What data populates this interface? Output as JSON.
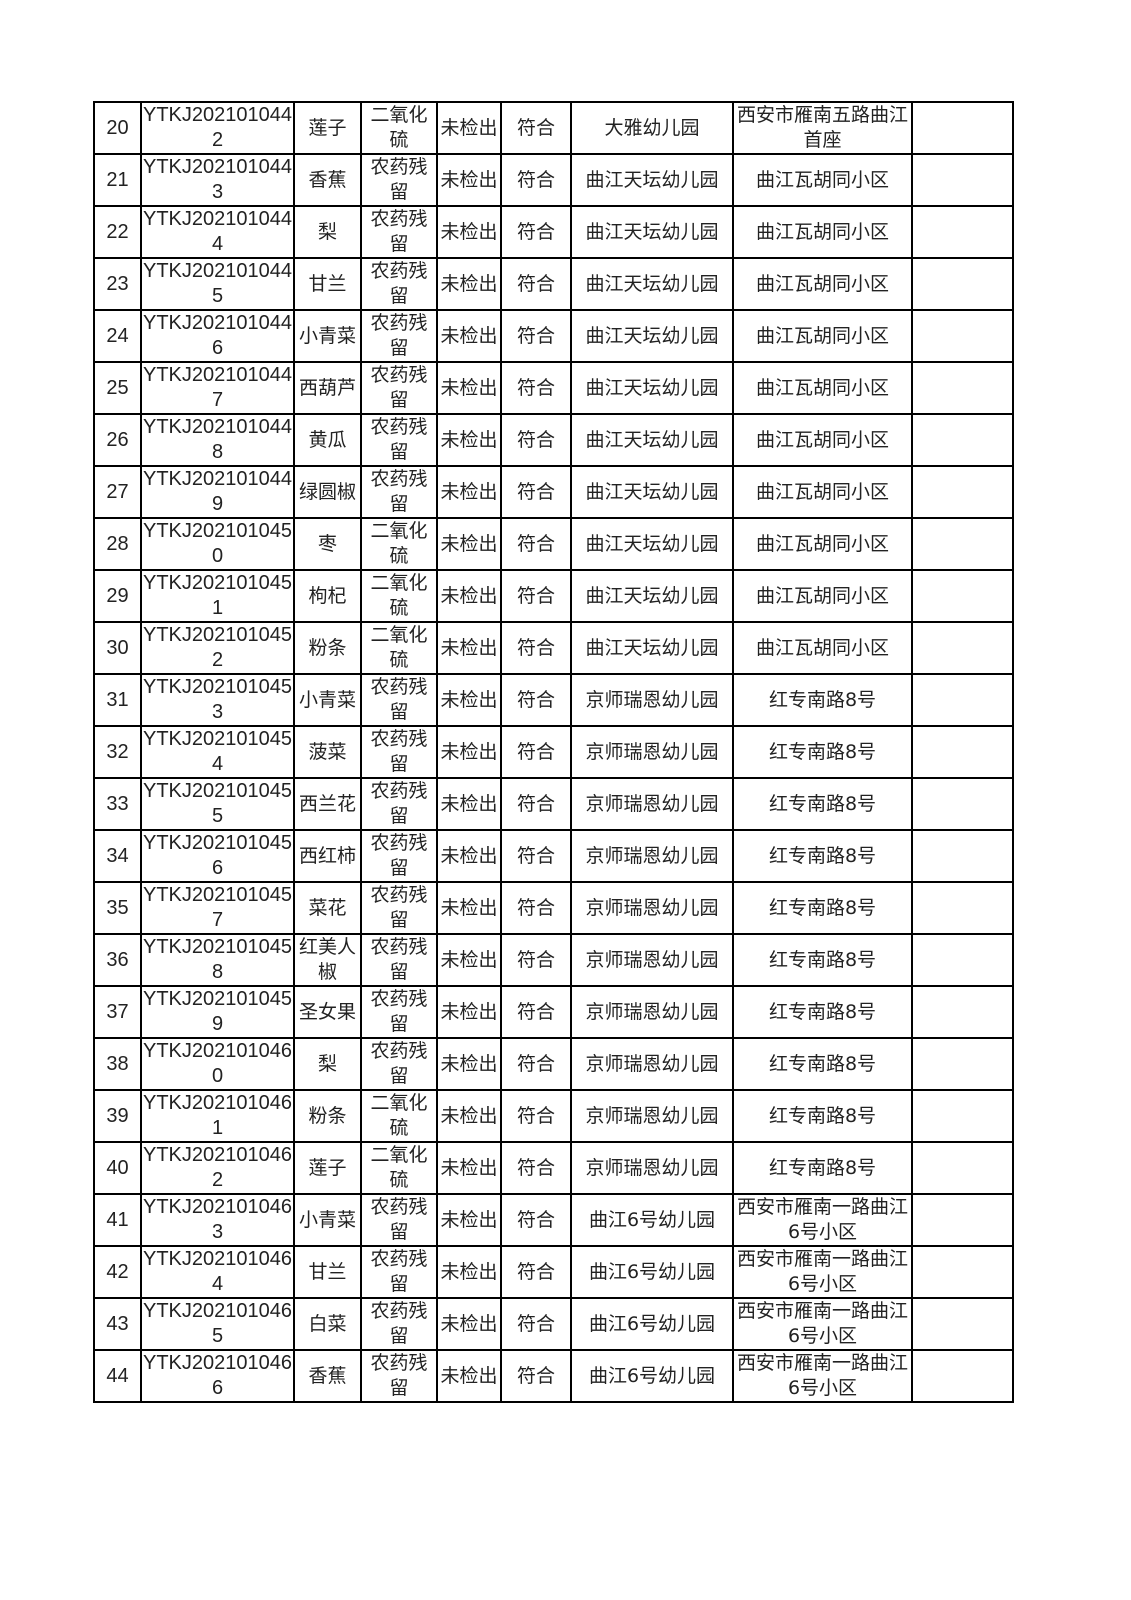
{
  "rows": [
    [
      "20",
      "YTKJ2021010442",
      "莲子",
      "二氧化硫",
      "未检出",
      "符合",
      "大雅幼儿园",
      "西安市雁南五路曲江首座",
      ""
    ],
    [
      "21",
      "YTKJ2021010443",
      "香蕉",
      "农药残留",
      "未检出",
      "符合",
      "曲江天坛幼儿园",
      "曲江瓦胡同小区",
      ""
    ],
    [
      "22",
      "YTKJ2021010444",
      "梨",
      "农药残留",
      "未检出",
      "符合",
      "曲江天坛幼儿园",
      "曲江瓦胡同小区",
      ""
    ],
    [
      "23",
      "YTKJ2021010445",
      "甘兰",
      "农药残留",
      "未检出",
      "符合",
      "曲江天坛幼儿园",
      "曲江瓦胡同小区",
      ""
    ],
    [
      "24",
      "YTKJ2021010446",
      "小青菜",
      "农药残留",
      "未检出",
      "符合",
      "曲江天坛幼儿园",
      "曲江瓦胡同小区",
      ""
    ],
    [
      "25",
      "YTKJ2021010447",
      "西葫芦",
      "农药残留",
      "未检出",
      "符合",
      "曲江天坛幼儿园",
      "曲江瓦胡同小区",
      ""
    ],
    [
      "26",
      "YTKJ2021010448",
      "黄瓜",
      "农药残留",
      "未检出",
      "符合",
      "曲江天坛幼儿园",
      "曲江瓦胡同小区",
      ""
    ],
    [
      "27",
      "YTKJ2021010449",
      "绿圆椒",
      "农药残留",
      "未检出",
      "符合",
      "曲江天坛幼儿园",
      "曲江瓦胡同小区",
      ""
    ],
    [
      "28",
      "YTKJ2021010450",
      "枣",
      "二氧化硫",
      "未检出",
      "符合",
      "曲江天坛幼儿园",
      "曲江瓦胡同小区",
      ""
    ],
    [
      "29",
      "YTKJ2021010451",
      "枸杞",
      "二氧化硫",
      "未检出",
      "符合",
      "曲江天坛幼儿园",
      "曲江瓦胡同小区",
      ""
    ],
    [
      "30",
      "YTKJ2021010452",
      "粉条",
      "二氧化硫",
      "未检出",
      "符合",
      "曲江天坛幼儿园",
      "曲江瓦胡同小区",
      ""
    ],
    [
      "31",
      "YTKJ2021010453",
      "小青菜",
      "农药残留",
      "未检出",
      "符合",
      "京师瑞恩幼儿园",
      "红专南路8号",
      ""
    ],
    [
      "32",
      "YTKJ2021010454",
      "菠菜",
      "农药残留",
      "未检出",
      "符合",
      "京师瑞恩幼儿园",
      "红专南路8号",
      ""
    ],
    [
      "33",
      "YTKJ2021010455",
      "西兰花",
      "农药残留",
      "未检出",
      "符合",
      "京师瑞恩幼儿园",
      "红专南路8号",
      ""
    ],
    [
      "34",
      "YTKJ2021010456",
      "西红柿",
      "农药残留",
      "未检出",
      "符合",
      "京师瑞恩幼儿园",
      "红专南路8号",
      ""
    ],
    [
      "35",
      "YTKJ2021010457",
      "菜花",
      "农药残留",
      "未检出",
      "符合",
      "京师瑞恩幼儿园",
      "红专南路8号",
      ""
    ],
    [
      "36",
      "YTKJ2021010458",
      "红美人椒",
      "农药残留",
      "未检出",
      "符合",
      "京师瑞恩幼儿园",
      "红专南路8号",
      ""
    ],
    [
      "37",
      "YTKJ2021010459",
      "圣女果",
      "农药残留",
      "未检出",
      "符合",
      "京师瑞恩幼儿园",
      "红专南路8号",
      ""
    ],
    [
      "38",
      "YTKJ2021010460",
      "梨",
      "农药残留",
      "未检出",
      "符合",
      "京师瑞恩幼儿园",
      "红专南路8号",
      ""
    ],
    [
      "39",
      "YTKJ2021010461",
      "粉条",
      "二氧化硫",
      "未检出",
      "符合",
      "京师瑞恩幼儿园",
      "红专南路8号",
      ""
    ],
    [
      "40",
      "YTKJ2021010462",
      "莲子",
      "二氧化硫",
      "未检出",
      "符合",
      "京师瑞恩幼儿园",
      "红专南路8号",
      ""
    ],
    [
      "41",
      "YTKJ2021010463",
      "小青菜",
      "农药残留",
      "未检出",
      "符合",
      "曲江6号幼儿园",
      "西安市雁南一路曲江6号小区",
      ""
    ],
    [
      "42",
      "YTKJ2021010464",
      "甘兰",
      "农药残留",
      "未检出",
      "符合",
      "曲江6号幼儿园",
      "西安市雁南一路曲江6号小区",
      ""
    ],
    [
      "43",
      "YTKJ2021010465",
      "白菜",
      "农药残留",
      "未检出",
      "符合",
      "曲江6号幼儿园",
      "西安市雁南一路曲江6号小区",
      ""
    ],
    [
      "44",
      "YTKJ2021010466",
      "香蕉",
      "农药残留",
      "未检出",
      "符合",
      "曲江6号幼儿园",
      "西安市雁南一路曲江6号小区",
      ""
    ]
  ]
}
